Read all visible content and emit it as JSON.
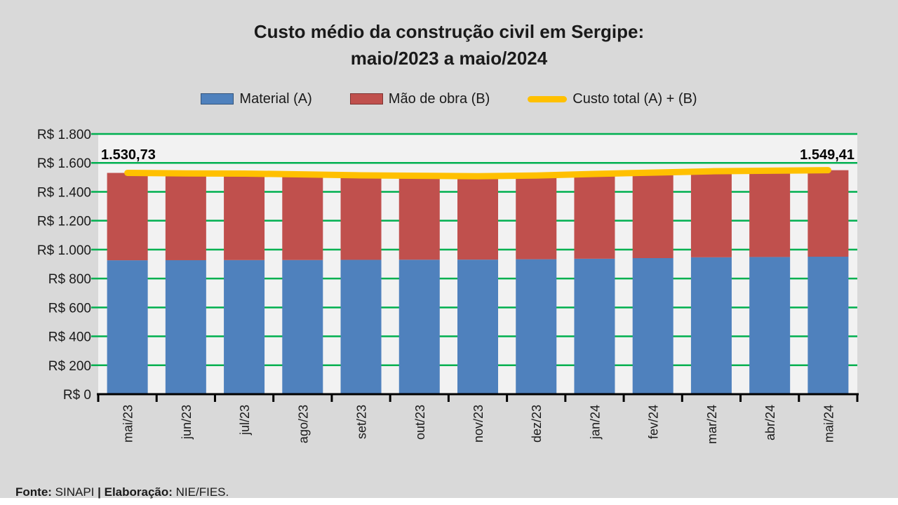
{
  "title": {
    "line1": "Custo médio da construção civil em Sergipe:",
    "line2": "maio/2023 a maio/2024"
  },
  "legend": [
    {
      "label": "Material (A)",
      "color": "#4F81BD",
      "shape": "rect"
    },
    {
      "label": "Mão de obra (B)",
      "color": "#C0504D",
      "shape": "rect"
    },
    {
      "label": "Custo total (A) + (B)",
      "color": "#FFC000",
      "shape": "line"
    }
  ],
  "footer": {
    "source_label": "Fonte:",
    "source_value": " SINAPI",
    "elaboration_label": " | Elaboração:",
    "elaboration_value": " NIE/FIES."
  },
  "chart_data": {
    "type": "bar",
    "stacked": true,
    "title": "Custo médio da construção civil em Sergipe: maio/2023 a maio/2024",
    "categories": [
      "mai/23",
      "jun/23",
      "jul/23",
      "ago/23",
      "set/23",
      "out/23",
      "nov/23",
      "dez/23",
      "jan/24",
      "fev/24",
      "mar/24",
      "abr/24",
      "mai/24"
    ],
    "series": [
      {
        "name": "Material (A)",
        "color": "#4F81BD",
        "values": [
          926.2,
          926.8,
          927.5,
          928.0,
          929.3,
          930.1,
          930.8,
          933.4,
          936.9,
          941.2,
          946.8,
          948.9,
          950.9
        ]
      },
      {
        "name": "Mão de obra (B)",
        "color": "#C0504D",
        "values": [
          604.53,
          600.7,
          598.3,
          592.4,
          584.3,
          580.8,
          576.4,
          579.4,
          586.6,
          591.5,
          595.1,
          596.7,
          598.51
        ]
      }
    ],
    "line_series": {
      "name": "Custo total (A) + (B)",
      "color": "#FFC000",
      "values": [
        1530.73,
        1527.5,
        1525.8,
        1520.4,
        1513.6,
        1510.9,
        1507.2,
        1512.8,
        1523.5,
        1532.7,
        1541.9,
        1545.6,
        1549.41
      ]
    },
    "annotations": [
      {
        "index": 0,
        "label": "1.530,73",
        "align": "left"
      },
      {
        "index": 12,
        "label": "1.549,41",
        "align": "right"
      }
    ],
    "ylim": [
      0,
      1800
    ],
    "ytick_step": 200,
    "ytick_labels": [
      "R$ 0",
      "R$ 200",
      "R$ 400",
      "R$ 600",
      "R$ 800",
      "R$ 1.000",
      "R$ 1.200",
      "R$ 1.400",
      "R$ 1.600",
      "R$ 1.800"
    ],
    "grid": true,
    "grid_color": "#00B050",
    "axis_color": "#000000",
    "plot_bg": "#F2F2F2",
    "page_bg": "#D9D9D9",
    "legend_position": "top"
  }
}
